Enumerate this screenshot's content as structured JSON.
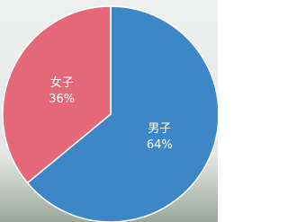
{
  "chart_data": {
    "type": "pie",
    "categories": [
      "男子",
      "女子"
    ],
    "values": [
      64,
      36
    ],
    "value_labels": [
      "64%",
      "36%"
    ],
    "colors": [
      "#3e87c7",
      "#e56878"
    ]
  }
}
